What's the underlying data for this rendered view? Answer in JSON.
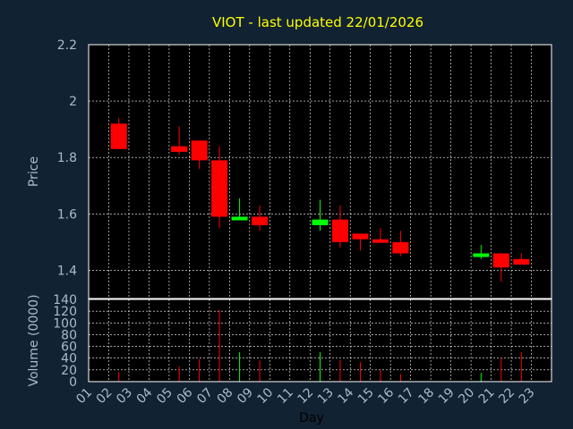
{
  "chart_data": {
    "type": "candlestick",
    "title": "VIOT - last updated 22/01/2026",
    "xlabel": "Day",
    "x_ticks": [
      "01",
      "02",
      "03",
      "04",
      "05",
      "06",
      "07",
      "08",
      "09",
      "10",
      "11",
      "12",
      "13",
      "14",
      "15",
      "16",
      "17",
      "18",
      "19",
      "20",
      "21",
      "22",
      "23"
    ],
    "price_panel": {
      "ylabel": "Price",
      "ylim": [
        1.3,
        2.2
      ],
      "y_ticks": [
        "1.4",
        "1.6",
        "1.8",
        "2",
        "2.2"
      ],
      "y_tick_values": [
        1.4,
        1.6,
        1.8,
        2.0,
        2.2
      ],
      "grid": true
    },
    "volume_panel": {
      "ylabel": "Volume (0000)",
      "ylim": [
        0,
        140
      ],
      "y_ticks": [
        "0",
        "20",
        "40",
        "60",
        "80",
        "100",
        "120",
        "140"
      ],
      "y_tick_values": [
        0,
        20,
        40,
        60,
        80,
        100,
        120,
        140
      ],
      "grid": true
    },
    "colors": {
      "up": "#00ff00",
      "down": "#ff0000",
      "background": "#112233",
      "grid": "#ffffff",
      "title": "#ffff00",
      "labels": "#aabbcc"
    },
    "candles": [
      {
        "day": 2,
        "open": 1.92,
        "high": 1.94,
        "low": 1.83,
        "close": 1.83,
        "volume": 16
      },
      {
        "day": 5,
        "open": 1.84,
        "high": 1.91,
        "low": 1.81,
        "close": 1.82,
        "volume": 26
      },
      {
        "day": 6,
        "open": 1.86,
        "high": 1.86,
        "low": 1.76,
        "close": 1.79,
        "volume": 38
      },
      {
        "day": 7,
        "open": 1.79,
        "high": 1.84,
        "low": 1.55,
        "close": 1.59,
        "volume": 122
      },
      {
        "day": 8,
        "open": 1.58,
        "high": 1.655,
        "low": 1.58,
        "close": 1.59,
        "volume": 50
      },
      {
        "day": 9,
        "open": 1.59,
        "high": 1.63,
        "low": 1.54,
        "close": 1.56,
        "volume": 36
      },
      {
        "day": 12,
        "open": 1.56,
        "high": 1.65,
        "low": 1.54,
        "close": 1.58,
        "volume": 50
      },
      {
        "day": 13,
        "open": 1.58,
        "high": 1.63,
        "low": 1.48,
        "close": 1.5,
        "volume": 37
      },
      {
        "day": 14,
        "open": 1.53,
        "high": 1.53,
        "low": 1.47,
        "close": 1.51,
        "volume": 33
      },
      {
        "day": 15,
        "open": 1.51,
        "high": 1.55,
        "low": 1.5,
        "close": 1.5,
        "volume": 19
      },
      {
        "day": 16,
        "open": 1.5,
        "high": 1.54,
        "low": 1.45,
        "close": 1.46,
        "volume": 13
      },
      {
        "day": 20,
        "open": 1.45,
        "high": 1.49,
        "low": 1.44,
        "close": 1.46,
        "volume": 15
      },
      {
        "day": 21,
        "open": 1.46,
        "high": 1.46,
        "low": 1.36,
        "close": 1.41,
        "volume": 40
      },
      {
        "day": 22,
        "open": 1.44,
        "high": 1.46,
        "low": 1.42,
        "close": 1.42,
        "volume": 50
      }
    ]
  }
}
